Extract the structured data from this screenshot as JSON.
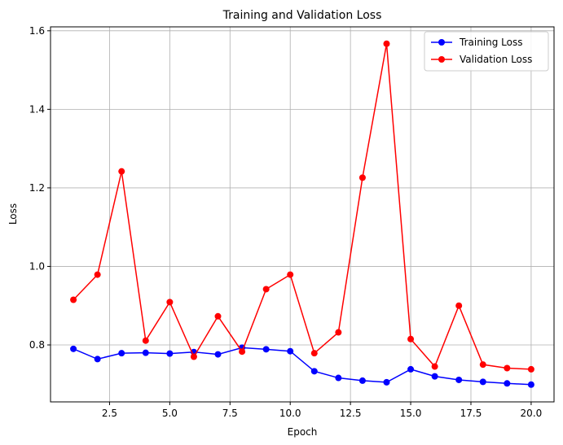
{
  "chart_data": {
    "type": "line",
    "title": "Training and Validation Loss",
    "xlabel": "Epoch",
    "ylabel": "Loss",
    "xlim": [
      0.05,
      20.95
    ],
    "ylim": [
      0.655,
      1.61
    ],
    "x_ticks": [
      2.5,
      5.0,
      7.5,
      10.0,
      12.5,
      15.0,
      17.5,
      20.0
    ],
    "x_tick_labels": [
      "2.5",
      "5.0",
      "7.5",
      "10.0",
      "12.5",
      "15.0",
      "17.5",
      "20.0"
    ],
    "y_ticks": [
      0.8,
      1.0,
      1.2,
      1.4,
      1.6
    ],
    "y_tick_labels": [
      "0.8",
      "1.0",
      "1.2",
      "1.4",
      "1.6"
    ],
    "grid": true,
    "legend_position": "top-right",
    "x": [
      1,
      2,
      3,
      4,
      5,
      6,
      7,
      8,
      9,
      10,
      11,
      12,
      13,
      14,
      15,
      16,
      17,
      18,
      19,
      20
    ],
    "series": [
      {
        "name": "Training Loss",
        "color": "#0000ff",
        "marker": "circle",
        "values": [
          0.79,
          0.764,
          0.779,
          0.78,
          0.778,
          0.782,
          0.776,
          0.793,
          0.789,
          0.784,
          0.733,
          0.716,
          0.709,
          0.705,
          0.738,
          0.72,
          0.711,
          0.706,
          0.702,
          0.699
        ]
      },
      {
        "name": "Validation Loss",
        "color": "#ff0000",
        "marker": "circle",
        "values": [
          0.915,
          0.979,
          1.242,
          0.811,
          0.909,
          0.77,
          0.873,
          0.783,
          0.942,
          0.979,
          0.779,
          0.832,
          1.226,
          1.567,
          0.815,
          0.745,
          0.9,
          0.75,
          0.741,
          0.738
        ]
      }
    ]
  }
}
